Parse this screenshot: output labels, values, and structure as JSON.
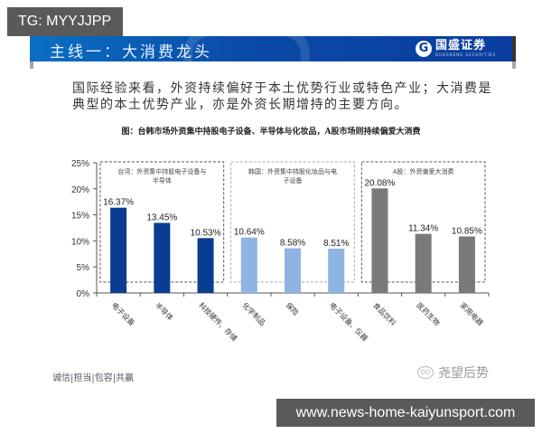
{
  "overlay": {
    "tg_label": "TG: MYYJJPP",
    "url_label": "www.news-home-kaiyunsport.com"
  },
  "header": {
    "title": "主线一：大消费龙头",
    "logo_text": "国盛证券",
    "logo_sub": "GUOSHENG SECURITIES",
    "logo_mark": "G"
  },
  "intro_text": "国际经验来看，外资持续偏好于本土优势行业或特色产业；大消费是典型的本土优势产业，亦是外资长期增持的主要方向。",
  "footer": {
    "motto": "诚信|担当|包容|共赢",
    "wechat_name": "尧望后势"
  },
  "colors": {
    "taiwan": "#0a3d91",
    "korea": "#8eb4e3",
    "ashare": "#7a7a7a",
    "header_blue": "#0a4aa8"
  },
  "chart_data": {
    "type": "bar",
    "title": "图：台韩市场外资集中持股电子设备、半导体与化妆品，A股市场则持续偏爱大消费",
    "xlabel": "",
    "ylabel": "",
    "ylim": [
      0,
      25
    ],
    "yticks": [
      "0%",
      "5%",
      "10%",
      "15%",
      "20%",
      "25%"
    ],
    "grid": false,
    "categories": [
      "电子设备",
      "半导体",
      "科技硬件、存储",
      "化学制品",
      "保险",
      "电子设备、仪器",
      "食品饮料",
      "医药生物",
      "家用电器"
    ],
    "values": [
      16.37,
      13.45,
      10.53,
      10.64,
      8.58,
      8.51,
      20.08,
      11.34,
      10.85
    ],
    "value_labels": [
      "16.37%",
      "13.45%",
      "10.53%",
      "10.64%",
      "8.58%",
      "8.51%",
      "20.08%",
      "11.34%",
      "10.85%"
    ],
    "groups": [
      {
        "name": "台湾：外资集中持股电子设备与半导体",
        "line1": "台湾：外资集中持股电子设备与",
        "line2": "半导体",
        "indices": [
          0,
          1,
          2
        ],
        "color": "#0a3d91"
      },
      {
        "name": "韩国：外资集中持股化妆品与电子设备",
        "line1": "韩国：外资集中持股化妆品与电",
        "line2": "子设备",
        "indices": [
          3,
          4,
          5
        ],
        "color": "#8eb4e3"
      },
      {
        "name": "A股：外资偏爱大消费",
        "line1": "A股：外资偏爱大消费",
        "line2": "",
        "indices": [
          6,
          7,
          8
        ],
        "color": "#7a7a7a"
      }
    ]
  }
}
